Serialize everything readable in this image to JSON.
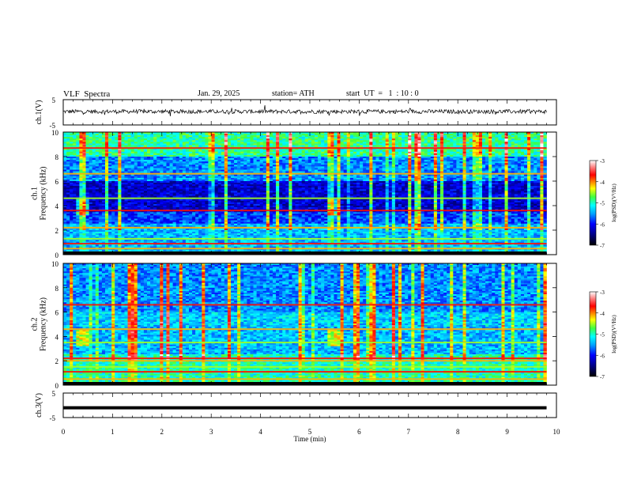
{
  "header": {
    "title": "VLF  Spectra",
    "date": "Jan. 29, 2025",
    "station": "station= ATH",
    "start": "start  UT  =   1  : 10 : 0"
  },
  "chart_data": [
    {
      "type": "line",
      "name": "ch1-waveform",
      "ylabel": "ch.1(V)",
      "ylim": [
        -5,
        5
      ],
      "yticks": [
        "5",
        "-5"
      ],
      "xlim": [
        0,
        10
      ],
      "series_level_v": 0.3,
      "series_noise_v": 0.8,
      "data_end_min": 9.8
    },
    {
      "type": "heatmap",
      "name": "ch1-spectrogram",
      "ylabel": "ch.1\nFrequency (kHz)",
      "ylabel_lines": [
        "ch.1",
        "Frequency  (kHz)"
      ],
      "ylim": [
        0,
        10
      ],
      "yticks": [
        "0",
        "2",
        "4",
        "6",
        "8",
        "10"
      ],
      "xlim": [
        0,
        10
      ],
      "data_end_min": 9.8,
      "colorbar": {
        "label": "log(PSD)(V²/Hz)",
        "range": [
          -7,
          -3
        ],
        "ticks": [
          "-3",
          "-4",
          "-5",
          "-6",
          "-7"
        ]
      },
      "strong_bands_khz": [
        0.2,
        0.5,
        0.9,
        1.3,
        2.2,
        3.6,
        4.6,
        6.6,
        8.7
      ],
      "quiet_band_khz": [
        3.5,
        6.0
      ],
      "bursts_min": [
        0.4,
        5.5
      ]
    },
    {
      "type": "heatmap",
      "name": "ch2-spectrogram",
      "ylabel_lines": [
        "ch.2",
        "Frequency  (kHz)"
      ],
      "ylim": [
        0,
        10
      ],
      "yticks": [
        "0",
        "2",
        "4",
        "6",
        "8",
        "10"
      ],
      "xlim": [
        0,
        10
      ],
      "data_end_min": 9.8,
      "colorbar": {
        "label": "log(PSD)(V²/Hz)",
        "range": [
          -7,
          -3
        ],
        "ticks": [
          "-3",
          "-4",
          "-5",
          "-6",
          "-7"
        ]
      },
      "strong_bands_khz": [
        0.2,
        0.5,
        1.1,
        1.5,
        2.0,
        2.2,
        3.5,
        4.6,
        6.6
      ],
      "quiet_band_khz": [
        6.0,
        10.0
      ],
      "bursts_min": [
        0.4,
        5.5
      ]
    },
    {
      "type": "line",
      "name": "ch3-waveform",
      "ylabel": "ch.3(V)",
      "ylim": [
        -5,
        5
      ],
      "yticks": [
        "5",
        "-5"
      ],
      "xlim": [
        0,
        10
      ],
      "series_level_v": -1.0,
      "data_end_min": 9.8
    }
  ],
  "xaxis": {
    "label": "Time  (min)",
    "ticks": [
      "0",
      "1",
      "2",
      "3",
      "4",
      "5",
      "6",
      "7",
      "8",
      "9",
      "10"
    ]
  },
  "colors": {
    "colormap": [
      "#00007f",
      "#0000ff",
      "#007fff",
      "#00ffff",
      "#7fff7f",
      "#ffff00",
      "#ff7f00",
      "#ff0000",
      "#7f0000",
      "#ffffff"
    ]
  }
}
